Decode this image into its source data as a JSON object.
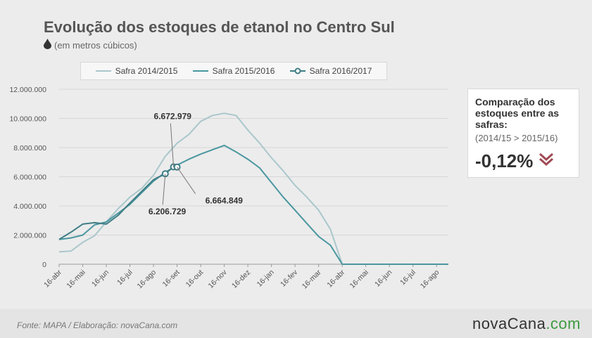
{
  "header": {
    "title": "Evolução dos estoques de etanol no Centro Sul",
    "subtitle": "(em metros cúbicos)"
  },
  "legend": {
    "items": [
      {
        "label": "Safra 2014/2015",
        "color": "#aac7cc",
        "marker": "line"
      },
      {
        "label": "Safra 2015/2016",
        "color": "#4a97a0",
        "marker": "line"
      },
      {
        "label": "Safra 2016/2017",
        "color": "#3f7d84",
        "marker": "circle"
      }
    ]
  },
  "comparison": {
    "title": "Comparação dos estoques entre as safras:",
    "period": "(2014/15 > 2015/16)",
    "value": "-0,12%",
    "arrow_color": "#a04a55",
    "arrow_icon": "double-chevron-down-icon"
  },
  "footer": {
    "source": "Fonte: MAPA  / Elaboração: novaCana.com",
    "brand_part1": "novaCana",
    "brand_part2": ".com"
  },
  "chart_data": {
    "type": "line",
    "x": [
      "16-abr",
      "16-mai",
      "16-jun",
      "16-jul",
      "16-ago",
      "16-set",
      "16-out",
      "16-nov",
      "16-dez",
      "16-jan",
      "16-fev",
      "16-mar",
      "16-abr",
      "16-mai",
      "16-jun",
      "16-jul",
      "16-ago"
    ],
    "ylim": [
      0,
      12000000
    ],
    "yticks": [
      0,
      2000000,
      4000000,
      6000000,
      8000000,
      10000000,
      12000000
    ],
    "ytick_labels": [
      "0",
      "2.000.000",
      "4.000.000",
      "6.000.000",
      "8.000.000",
      "10.000.000",
      "12.000.000"
    ],
    "grid": "horizontal",
    "series": [
      {
        "name": "Safra 2014/2015",
        "color": "#aac7cc",
        "x": [
          0,
          0.5,
          1,
          1.5,
          2,
          2.5,
          3,
          3.5,
          4,
          4.5,
          5,
          5.5,
          6,
          6.5,
          7,
          7.5,
          8,
          8.5,
          9,
          9.5,
          10,
          10.5,
          11,
          11.5,
          12,
          12.5,
          13,
          13.5,
          14,
          14.5,
          15,
          15.5,
          16,
          16.5
        ],
        "y": [
          850000,
          900000,
          1500000,
          1950000,
          2900000,
          3800000,
          4600000,
          5200000,
          6100000,
          7400000,
          8300000,
          8900000,
          9800000,
          10200000,
          10350000,
          10200000,
          9200000,
          8300000,
          7300000,
          6400000,
          5400000,
          4600000,
          3700000,
          2400000,
          0,
          0,
          0,
          0,
          0,
          0,
          0,
          0,
          0,
          0
        ]
      },
      {
        "name": "Safra 2015/2016",
        "color": "#4a97a0",
        "x": [
          0,
          0.5,
          1,
          1.5,
          2,
          2.5,
          3,
          3.5,
          4,
          4.5,
          5,
          5.5,
          6,
          6.5,
          7,
          7.5,
          8,
          8.5,
          9,
          9.5,
          10,
          10.5,
          11,
          11.5,
          12,
          12.5,
          13,
          13.5,
          14,
          14.5,
          15,
          15.5,
          16,
          16.5
        ],
        "y": [
          1700000,
          1800000,
          2000000,
          2700000,
          2900000,
          3500000,
          4100000,
          4900000,
          5700000,
          6300000,
          6800000,
          7200000,
          7550000,
          7850000,
          8150000,
          7700000,
          7200000,
          6600000,
          5600000,
          4600000,
          3700000,
          2800000,
          1900000,
          1300000,
          0,
          0,
          0,
          0,
          0,
          0,
          0,
          0,
          0,
          0
        ]
      },
      {
        "name": "Safra 2016/2017",
        "color": "#3f7d84",
        "x": [
          0,
          0.5,
          1,
          1.5,
          2,
          2.5,
          3,
          3.5,
          4,
          4.5,
          4.85,
          5
        ],
        "y": [
          1700000,
          2200000,
          2750000,
          2850000,
          2750000,
          3350000,
          4200000,
          5000000,
          5800000,
          6206729,
          6672979,
          6664849
        ],
        "markers": [
          9,
          10,
          11
        ]
      }
    ],
    "annotations": [
      {
        "text": "6.672.979",
        "x": 4.85,
        "y": 6672979
      },
      {
        "text": "6.206.729",
        "x": 4.5,
        "y": 6206729
      },
      {
        "text": "6.664.849",
        "x": 5,
        "y": 6664849
      }
    ]
  }
}
